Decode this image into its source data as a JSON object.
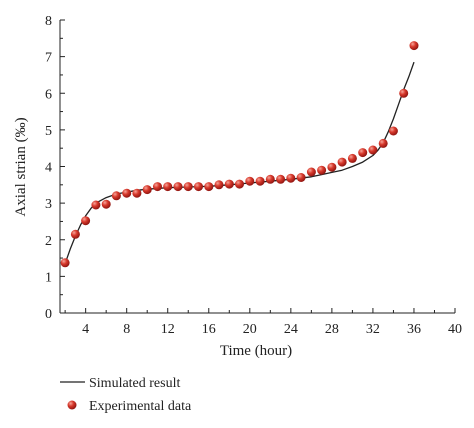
{
  "chart_data": {
    "type": "scatter",
    "title": "",
    "xlabel": "Time (hour)",
    "ylabel": "Axial strian (‰)",
    "xlim": [
      1.5,
      40
    ],
    "ylim": [
      0,
      8
    ],
    "xticks": [
      "4",
      "8",
      "12",
      "16",
      "20",
      "24",
      "28",
      "32",
      "36",
      "40"
    ],
    "yticks": [
      "0",
      "1",
      "2",
      "3",
      "4",
      "5",
      "6",
      "7",
      "8"
    ],
    "grid": false,
    "legend_position": "bottom-left",
    "series": [
      {
        "name": "Simulated result",
        "kind": "line",
        "color": "#222222",
        "x": [
          2,
          2.5,
          3,
          3.5,
          4,
          4.5,
          5,
          6,
          7,
          8,
          9,
          10,
          12,
          14,
          16,
          18,
          20,
          22,
          24,
          26,
          27,
          28,
          29,
          30,
          31,
          32,
          32.5,
          33,
          33.5,
          34,
          34.5,
          35,
          35.5,
          36
        ],
        "y": [
          1.35,
          1.75,
          2.1,
          2.4,
          2.65,
          2.85,
          3.0,
          3.15,
          3.25,
          3.3,
          3.35,
          3.38,
          3.42,
          3.44,
          3.46,
          3.5,
          3.55,
          3.6,
          3.65,
          3.72,
          3.78,
          3.84,
          3.9,
          4.0,
          4.12,
          4.3,
          4.45,
          4.65,
          4.95,
          5.3,
          5.7,
          6.1,
          6.45,
          6.85
        ]
      },
      {
        "name": "Experimental data",
        "kind": "scatter",
        "color": "#c0271f",
        "x": [
          2,
          3,
          4,
          5,
          6,
          7,
          8,
          9,
          10,
          11,
          12,
          13,
          14,
          15,
          16,
          17,
          18,
          19,
          20,
          21,
          22,
          23,
          24,
          25,
          26,
          27,
          28,
          29,
          30,
          31,
          32,
          33,
          34,
          35,
          36
        ],
        "y": [
          1.37,
          2.15,
          2.52,
          2.95,
          2.97,
          3.2,
          3.27,
          3.27,
          3.37,
          3.45,
          3.45,
          3.45,
          3.45,
          3.45,
          3.45,
          3.5,
          3.52,
          3.52,
          3.6,
          3.6,
          3.65,
          3.65,
          3.68,
          3.7,
          3.85,
          3.9,
          3.98,
          4.12,
          4.22,
          4.38,
          4.45,
          4.63,
          4.97,
          6.0,
          7.3
        ]
      }
    ]
  }
}
